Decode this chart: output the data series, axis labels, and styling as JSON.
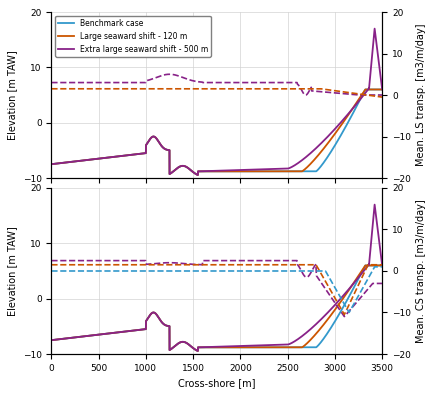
{
  "colors": {
    "blue": "#3399CC",
    "orange": "#CC5500",
    "purple": "#882288"
  },
  "ylim_elev": [
    -10,
    20
  ],
  "ylim_transp": [
    -20,
    20
  ],
  "xlim": [
    0,
    3500
  ],
  "xlabel": "Cross-shore [m]",
  "ylabel_left": "Elevation [m TAW]",
  "ylabel_right_top": "Mean. LS transp. [m3/m/day]",
  "ylabel_right_bot": "Mean. CS transp. [m3/m/day]",
  "legend_labels": [
    "Benchmark case",
    "Large seaward shift - 120 m",
    "Extra large seaward shift - 500 m"
  ],
  "yticks_elev": [
    -10,
    0,
    10,
    20
  ],
  "yticks_transp": [
    -20,
    -10,
    0,
    10,
    20
  ],
  "xticks": [
    0,
    500,
    1000,
    1500,
    2000,
    2500,
    3000,
    3500
  ]
}
